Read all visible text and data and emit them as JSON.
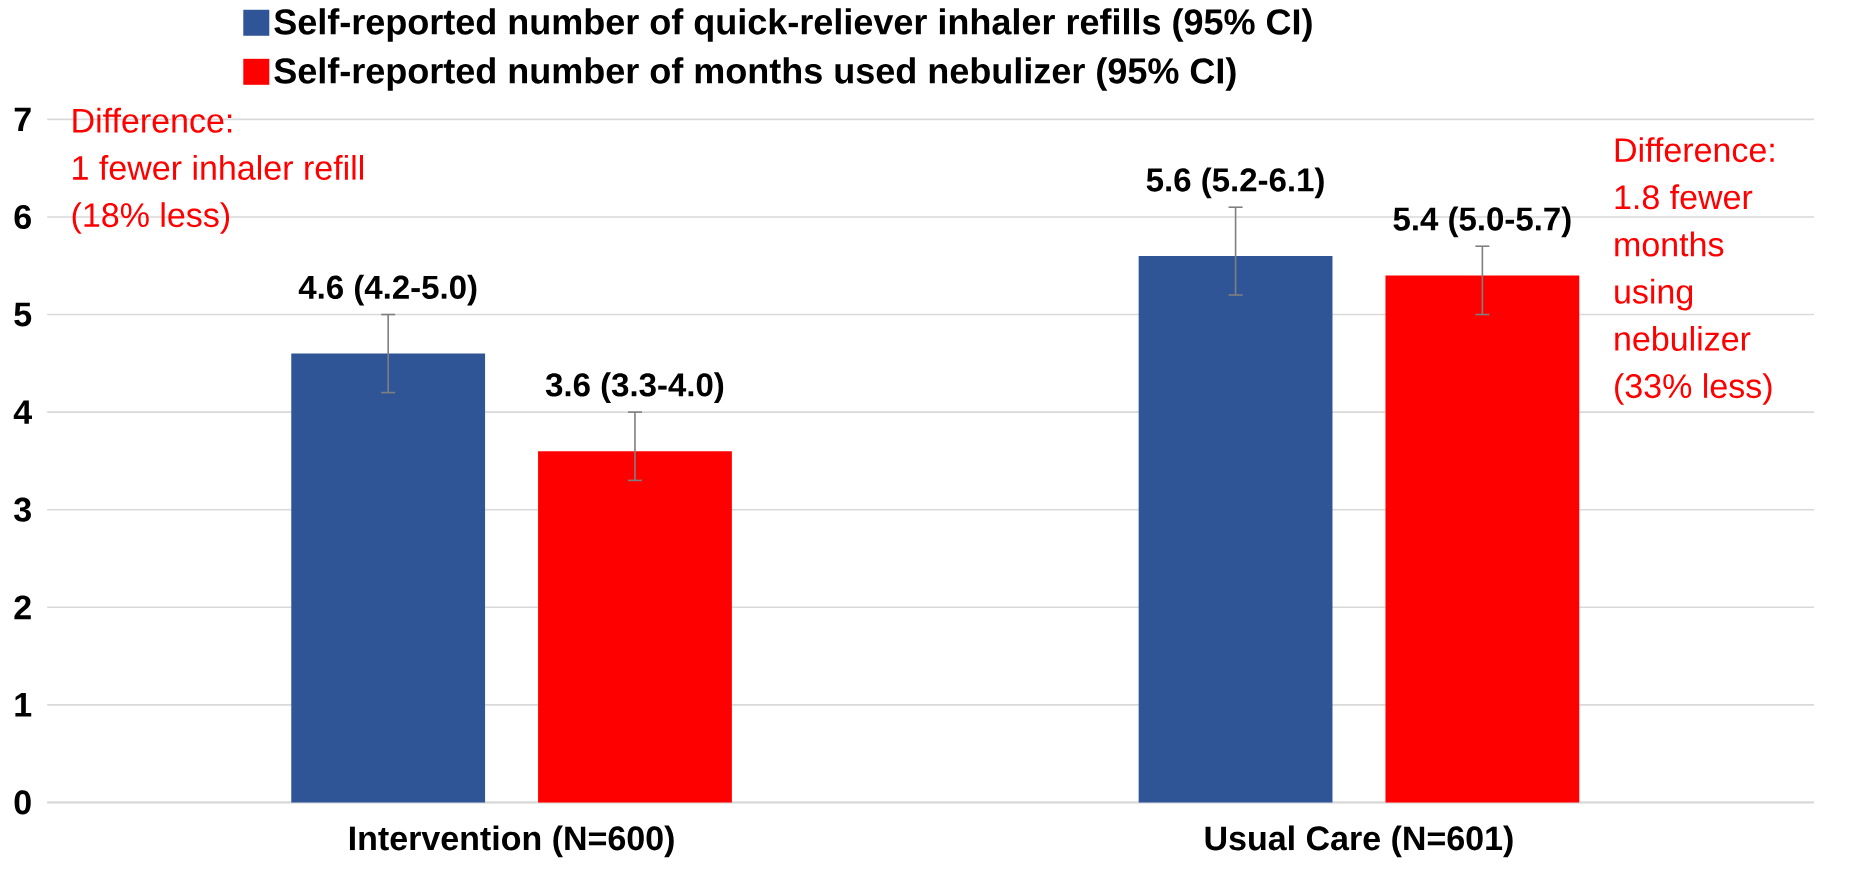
{
  "chart_data": {
    "type": "bar",
    "categories": [
      "Intervention (N=600)",
      "Usual Care (N=601)"
    ],
    "series": [
      {
        "name": "Self-reported number of quick-reliever inhaler refills (95% CI)",
        "color": "#2f5597",
        "values": [
          4.6,
          5.6
        ],
        "errors": [
          [
            4.2,
            5.0
          ],
          [
            5.2,
            6.1
          ]
        ],
        "value_labels": [
          "4.6 (4.2-5.0)",
          "5.6 (5.2-6.1)"
        ]
      },
      {
        "name": "Self-reported number of months used nebulizer (95% CI)",
        "color": "#ff0000",
        "values": [
          3.6,
          5.4
        ],
        "errors": [
          [
            3.3,
            4.0
          ],
          [
            5.0,
            5.7
          ]
        ],
        "value_labels": [
          "3.6 (3.3-4.0)",
          "5.4 (5.0-5.7)"
        ]
      }
    ],
    "ylim": [
      0,
      7
    ],
    "yticks": [
      0,
      1,
      2,
      3,
      4,
      5,
      6,
      7
    ],
    "grid": "y",
    "legend": "top",
    "annotations": [
      "Difference:",
      "1 fewer inhaler refill",
      "(18% less)",
      "Difference:",
      "1.8 fewer",
      "months",
      "using",
      "nebulizer",
      "(33% less)"
    ]
  }
}
